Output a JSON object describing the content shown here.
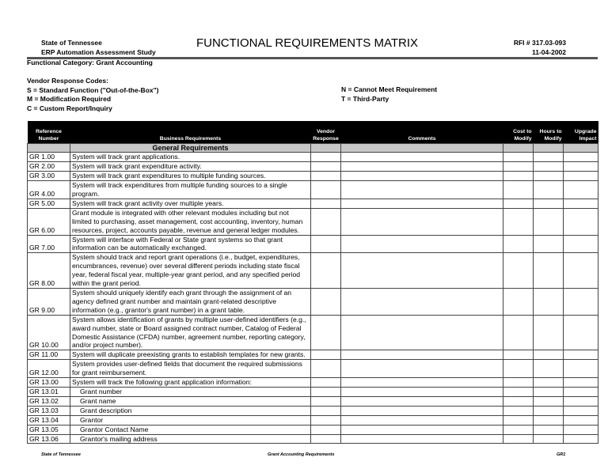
{
  "header": {
    "org": "State of Tennessee",
    "study": "ERP Automation Assessment Study",
    "title": "FUNCTIONAL REQUIREMENTS MATRIX",
    "rfi": "RFI # 317.03-093",
    "date": "11-04-2002"
  },
  "category": "Functional Category: Grant Accounting",
  "codes": {
    "title": "Vendor Response Codes:",
    "s": "S = Standard Function (\"Out-of-the-Box\")",
    "m": "M = Modification Required",
    "c": "C = Custom Report/Inquiry",
    "n": "N = Cannot Meet Requirement",
    "t": "T = Third-Party"
  },
  "columns": {
    "ref": "Reference Number",
    "req": "Business Requirements",
    "vendor": "Vendor Response",
    "comments": "Comments",
    "cost": "Cost to Modify",
    "hours": "Hours to Modify",
    "upgrade": "Upgrade Impact"
  },
  "section": "General Requirements",
  "rows": [
    {
      "ref": "GR 1.00",
      "text": "System will track grant applications."
    },
    {
      "ref": "GR 2.00",
      "text": "System will track grant expenditure activity."
    },
    {
      "ref": "GR 3.00",
      "text": "System will track grant expenditures to multiple funding sources."
    },
    {
      "ref": "GR 4.00",
      "text": "System will track  expenditures from multiple funding sources to a single program."
    },
    {
      "ref": "GR 5.00",
      "text": "System will track grant activity over multiple years."
    },
    {
      "ref": "GR 6.00",
      "text": "Grant module is integrated with other relevant modules including but not limited to purchasing, asset management, cost  accounting, inventory, human resources, project, accounts payable, revenue and general ledger modules."
    },
    {
      "ref": "GR 7.00",
      "text": "System will interface with Federal or State grant systems so that grant information can be automatically exchanged."
    },
    {
      "ref": "GR 8.00",
      "text": "System should track and report grant operations (i.e., budget, expenditures, encumbrances, revenue) over several different periods including state fiscal year, federal fiscal year, multiple-year grant period, and any specified period within the grant period."
    },
    {
      "ref": "GR 9.00",
      "text": "System should uniquely identify each grant through the assignment of an agency defined grant number and maintain grant-related descriptive information (e.g., grantor's grant number) in a grant table."
    },
    {
      "ref": "GR 10.00",
      "text": "System allows identification of grants by multiple user-defined identifiers (e.g., award number, state or Board assigned contract number, Catalog of Federal Domestic Assistance (CFDA) number, agreement number, reporting category, and/or project number)."
    },
    {
      "ref": "GR 11.00",
      "text": "System will duplicate preexisting grants to establish templates for new grants."
    },
    {
      "ref": "GR 12.00",
      "text": "System provides user-defined fields that document the required submissions for grant reimbursement."
    },
    {
      "ref": "GR 13.00",
      "text": "System will track the following grant application information:"
    },
    {
      "ref": "GR 13.01",
      "text": "Grant number",
      "indent": true
    },
    {
      "ref": "GR 13.02",
      "text": "Grant name",
      "indent": true
    },
    {
      "ref": "GR 13.03",
      "text": "Grant description",
      "indent": true
    },
    {
      "ref": "GR 13.04",
      "text": "Grantor",
      "indent": true
    },
    {
      "ref": "GR 13.05",
      "text": "Grantor Contact Name",
      "indent": true
    },
    {
      "ref": "GR 13.06",
      "text": "Grantor's mailing address",
      "indent": true
    }
  ],
  "footer": {
    "left": "State of Tennessee",
    "center": "Grant Accounting Requirements",
    "right": "GR1"
  }
}
